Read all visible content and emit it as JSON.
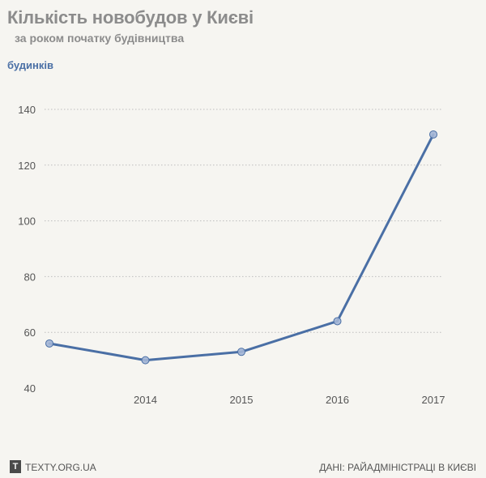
{
  "title": "Кількість новобудов у Києві",
  "subtitle": "за роком початку будівництва",
  "unit_label": "будинків",
  "footer": {
    "logo_letter": "T",
    "site": "TEXTY.ORG.UA",
    "source": "ДАНІ: РАЙАДМІНІСТРАЦІ В КИЄВІ"
  },
  "colors": {
    "line": "#4a6fa5",
    "marker_fill": "#a4b6d6",
    "grid": "#bdbdbd",
    "tick_text": "#555555",
    "unit_label": "#4a6fa5"
  },
  "chart_data": {
    "type": "line",
    "title": "Кількість новобудов у Києві",
    "subtitle": "за роком початку будівництва",
    "ylabel": "будинків",
    "xlabel": "",
    "x": [
      2013,
      2014,
      2015,
      2016,
      2017
    ],
    "x_tick_labels": [
      "",
      "2014",
      "2015",
      "2016",
      "2017"
    ],
    "series": [
      {
        "values": [
          56,
          50,
          53,
          64,
          131
        ]
      }
    ],
    "ylim": [
      40,
      140
    ],
    "yticks": [
      40,
      60,
      80,
      100,
      120,
      140
    ],
    "grid": true,
    "legend": "none"
  }
}
